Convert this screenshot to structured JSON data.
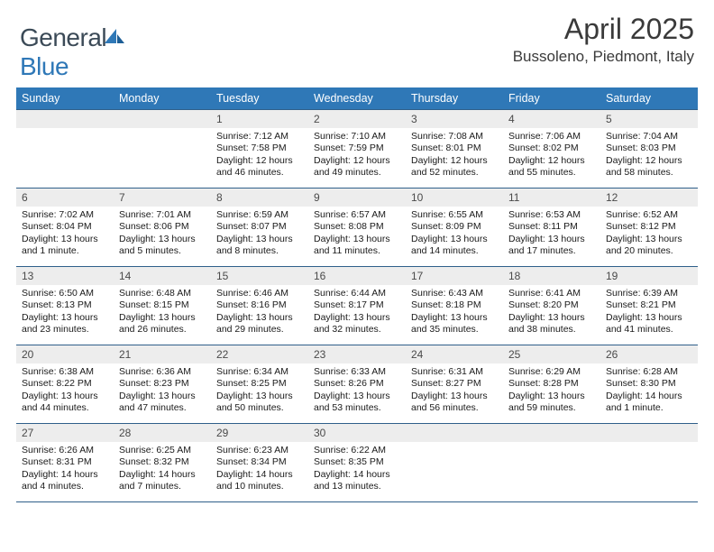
{
  "brand": {
    "part1": "General",
    "part2": "Blue"
  },
  "header": {
    "month": "April 2025",
    "location": "Bussoleno, Piedmont, Italy"
  },
  "colors": {
    "header_bg": "#2f78b7",
    "header_text": "#ffffff",
    "daynum_bg": "#ededed",
    "cell_border": "#2f5f8a",
    "page_bg": "#ffffff"
  },
  "weekdays": [
    "Sunday",
    "Monday",
    "Tuesday",
    "Wednesday",
    "Thursday",
    "Friday",
    "Saturday"
  ],
  "weeks": [
    [
      {
        "n": "",
        "lines": []
      },
      {
        "n": "",
        "lines": []
      },
      {
        "n": "1",
        "lines": [
          "Sunrise: 7:12 AM",
          "Sunset: 7:58 PM",
          "Daylight: 12 hours and 46 minutes."
        ]
      },
      {
        "n": "2",
        "lines": [
          "Sunrise: 7:10 AM",
          "Sunset: 7:59 PM",
          "Daylight: 12 hours and 49 minutes."
        ]
      },
      {
        "n": "3",
        "lines": [
          "Sunrise: 7:08 AM",
          "Sunset: 8:01 PM",
          "Daylight: 12 hours and 52 minutes."
        ]
      },
      {
        "n": "4",
        "lines": [
          "Sunrise: 7:06 AM",
          "Sunset: 8:02 PM",
          "Daylight: 12 hours and 55 minutes."
        ]
      },
      {
        "n": "5",
        "lines": [
          "Sunrise: 7:04 AM",
          "Sunset: 8:03 PM",
          "Daylight: 12 hours and 58 minutes."
        ]
      }
    ],
    [
      {
        "n": "6",
        "lines": [
          "Sunrise: 7:02 AM",
          "Sunset: 8:04 PM",
          "Daylight: 13 hours and 1 minute."
        ]
      },
      {
        "n": "7",
        "lines": [
          "Sunrise: 7:01 AM",
          "Sunset: 8:06 PM",
          "Daylight: 13 hours and 5 minutes."
        ]
      },
      {
        "n": "8",
        "lines": [
          "Sunrise: 6:59 AM",
          "Sunset: 8:07 PM",
          "Daylight: 13 hours and 8 minutes."
        ]
      },
      {
        "n": "9",
        "lines": [
          "Sunrise: 6:57 AM",
          "Sunset: 8:08 PM",
          "Daylight: 13 hours and 11 minutes."
        ]
      },
      {
        "n": "10",
        "lines": [
          "Sunrise: 6:55 AM",
          "Sunset: 8:09 PM",
          "Daylight: 13 hours and 14 minutes."
        ]
      },
      {
        "n": "11",
        "lines": [
          "Sunrise: 6:53 AM",
          "Sunset: 8:11 PM",
          "Daylight: 13 hours and 17 minutes."
        ]
      },
      {
        "n": "12",
        "lines": [
          "Sunrise: 6:52 AM",
          "Sunset: 8:12 PM",
          "Daylight: 13 hours and 20 minutes."
        ]
      }
    ],
    [
      {
        "n": "13",
        "lines": [
          "Sunrise: 6:50 AM",
          "Sunset: 8:13 PM",
          "Daylight: 13 hours and 23 minutes."
        ]
      },
      {
        "n": "14",
        "lines": [
          "Sunrise: 6:48 AM",
          "Sunset: 8:15 PM",
          "Daylight: 13 hours and 26 minutes."
        ]
      },
      {
        "n": "15",
        "lines": [
          "Sunrise: 6:46 AM",
          "Sunset: 8:16 PM",
          "Daylight: 13 hours and 29 minutes."
        ]
      },
      {
        "n": "16",
        "lines": [
          "Sunrise: 6:44 AM",
          "Sunset: 8:17 PM",
          "Daylight: 13 hours and 32 minutes."
        ]
      },
      {
        "n": "17",
        "lines": [
          "Sunrise: 6:43 AM",
          "Sunset: 8:18 PM",
          "Daylight: 13 hours and 35 minutes."
        ]
      },
      {
        "n": "18",
        "lines": [
          "Sunrise: 6:41 AM",
          "Sunset: 8:20 PM",
          "Daylight: 13 hours and 38 minutes."
        ]
      },
      {
        "n": "19",
        "lines": [
          "Sunrise: 6:39 AM",
          "Sunset: 8:21 PM",
          "Daylight: 13 hours and 41 minutes."
        ]
      }
    ],
    [
      {
        "n": "20",
        "lines": [
          "Sunrise: 6:38 AM",
          "Sunset: 8:22 PM",
          "Daylight: 13 hours and 44 minutes."
        ]
      },
      {
        "n": "21",
        "lines": [
          "Sunrise: 6:36 AM",
          "Sunset: 8:23 PM",
          "Daylight: 13 hours and 47 minutes."
        ]
      },
      {
        "n": "22",
        "lines": [
          "Sunrise: 6:34 AM",
          "Sunset: 8:25 PM",
          "Daylight: 13 hours and 50 minutes."
        ]
      },
      {
        "n": "23",
        "lines": [
          "Sunrise: 6:33 AM",
          "Sunset: 8:26 PM",
          "Daylight: 13 hours and 53 minutes."
        ]
      },
      {
        "n": "24",
        "lines": [
          "Sunrise: 6:31 AM",
          "Sunset: 8:27 PM",
          "Daylight: 13 hours and 56 minutes."
        ]
      },
      {
        "n": "25",
        "lines": [
          "Sunrise: 6:29 AM",
          "Sunset: 8:28 PM",
          "Daylight: 13 hours and 59 minutes."
        ]
      },
      {
        "n": "26",
        "lines": [
          "Sunrise: 6:28 AM",
          "Sunset: 8:30 PM",
          "Daylight: 14 hours and 1 minute."
        ]
      }
    ],
    [
      {
        "n": "27",
        "lines": [
          "Sunrise: 6:26 AM",
          "Sunset: 8:31 PM",
          "Daylight: 14 hours and 4 minutes."
        ]
      },
      {
        "n": "28",
        "lines": [
          "Sunrise: 6:25 AM",
          "Sunset: 8:32 PM",
          "Daylight: 14 hours and 7 minutes."
        ]
      },
      {
        "n": "29",
        "lines": [
          "Sunrise: 6:23 AM",
          "Sunset: 8:34 PM",
          "Daylight: 14 hours and 10 minutes."
        ]
      },
      {
        "n": "30",
        "lines": [
          "Sunrise: 6:22 AM",
          "Sunset: 8:35 PM",
          "Daylight: 14 hours and 13 minutes."
        ]
      },
      {
        "n": "",
        "lines": []
      },
      {
        "n": "",
        "lines": []
      },
      {
        "n": "",
        "lines": []
      }
    ]
  ]
}
